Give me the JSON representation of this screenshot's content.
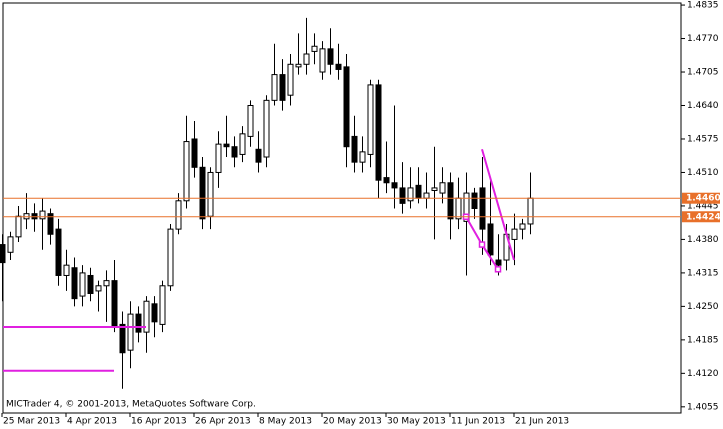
{
  "chart_data": {
    "type": "candlestick",
    "categories": [
      "25 Mar 2013",
      null,
      null,
      null,
      null,
      null,
      null,
      null,
      "4 Apr 2013",
      null,
      null,
      null,
      null,
      null,
      null,
      null,
      "16 Apr 2013",
      null,
      null,
      null,
      null,
      null,
      null,
      null,
      "26 Apr 2013",
      null,
      null,
      null,
      null,
      null,
      null,
      null,
      "8 May 2013",
      null,
      null,
      null,
      null,
      null,
      null,
      null,
      "20 May 2013",
      null,
      null,
      null,
      null,
      null,
      null,
      null,
      "30 May 2013",
      null,
      null,
      null,
      null,
      null,
      null,
      null,
      "11 Jun 2013",
      null,
      null,
      null,
      null,
      null,
      null,
      null,
      "21 Jun 2013",
      null,
      null
    ],
    "open": [
      1.437,
      1.4355,
      1.4385,
      1.442,
      1.443,
      1.442,
      1.443,
      1.44,
      1.431,
      1.4325,
      1.427,
      1.431,
      1.428,
      1.429,
      1.43,
      1.4215,
      1.4165,
      1.4235,
      1.42,
      1.4255,
      1.4215,
      1.429,
      1.44,
      1.4455,
      1.4575,
      1.452,
      1.4425,
      1.451,
      1.4565,
      1.456,
      1.4545,
      1.458,
      1.4555,
      1.454,
      1.465,
      1.47,
      1.466,
      1.4715,
      1.472,
      1.4745,
      1.4705,
      1.475,
      1.472,
      1.4715,
      1.458,
      1.453,
      1.4545,
      1.468,
      1.45,
      1.449,
      1.448,
      1.4455,
      1.4485,
      1.446,
      1.4475,
      1.447,
      1.449,
      1.442,
      1.4415,
      1.447,
      1.448,
      1.441,
      1.434,
      1.434,
      1.438,
      1.44,
      1.441
    ],
    "high": [
      1.439,
      1.4395,
      1.4445,
      1.447,
      1.445,
      1.446,
      1.444,
      1.442,
      1.436,
      1.4345,
      1.433,
      1.4325,
      1.43,
      1.432,
      1.434,
      1.424,
      1.426,
      1.425,
      1.427,
      1.427,
      1.43,
      1.441,
      1.447,
      1.462,
      1.461,
      1.454,
      1.452,
      1.459,
      1.462,
      1.458,
      1.46,
      1.465,
      1.459,
      1.466,
      1.476,
      1.473,
      1.474,
      1.478,
      1.481,
      1.478,
      1.4765,
      1.479,
      1.476,
      1.474,
      1.462,
      1.458,
      1.469,
      1.469,
      1.457,
      1.464,
      1.453,
      1.452,
      1.452,
      1.451,
      1.456,
      1.452,
      1.451,
      1.45,
      1.451,
      1.448,
      1.454,
      1.45,
      1.439,
      1.441,
      1.443,
      1.442,
      1.451
    ],
    "low": [
      1.426,
      1.434,
      1.4375,
      1.44,
      1.4395,
      1.436,
      1.437,
      1.429,
      1.428,
      1.425,
      1.425,
      1.426,
      1.424,
      1.422,
      1.42,
      1.409,
      1.413,
      1.418,
      1.416,
      1.419,
      1.42,
      1.428,
      1.439,
      1.444,
      1.45,
      1.44,
      1.44,
      1.448,
      1.454,
      1.452,
      1.453,
      1.456,
      1.451,
      1.452,
      1.464,
      1.463,
      1.464,
      1.47,
      1.47,
      1.472,
      1.469,
      1.47,
      1.469,
      1.452,
      1.451,
      1.451,
      1.452,
      1.446,
      1.447,
      1.444,
      1.443,
      1.444,
      1.445,
      1.444,
      1.438,
      1.445,
      1.438,
      1.44,
      1.431,
      1.442,
      1.435,
      1.433,
      1.431,
      1.432,
      1.433,
      1.438,
      1.439
    ],
    "close": [
      1.4335,
      1.4385,
      1.4425,
      1.443,
      1.442,
      1.4435,
      1.439,
      1.431,
      1.433,
      1.4265,
      1.4315,
      1.4275,
      1.429,
      1.43,
      1.421,
      1.416,
      1.4235,
      1.42,
      1.426,
      1.422,
      1.429,
      1.44,
      1.4455,
      1.457,
      1.452,
      1.442,
      1.451,
      1.4565,
      1.456,
      1.454,
      1.4585,
      1.464,
      1.453,
      1.465,
      1.47,
      1.465,
      1.472,
      1.472,
      1.474,
      1.4755,
      1.475,
      1.472,
      1.471,
      1.456,
      1.453,
      1.455,
      1.468,
      1.4495,
      1.449,
      1.448,
      1.445,
      1.448,
      1.446,
      1.447,
      1.448,
      1.449,
      1.442,
      1.446,
      1.447,
      1.444,
      1.44,
      1.435,
      1.433,
      1.439,
      1.44,
      1.441,
      1.446
    ],
    "ylim": [
      1.4043,
      1.4839
    ],
    "yticks": [
      1.4835,
      {
        "value": 1.477,
        "label": "1.4770"
      },
      1.4705,
      {
        "value": 1.464,
        "label": "1.4640"
      },
      1.4575,
      {
        "value": 1.451,
        "label": "1.4510"
      },
      1.4445,
      {
        "value": 1.438,
        "label": "1.4380"
      },
      1.4315,
      {
        "value": 1.425,
        "label": "1.4250"
      },
      1.4185,
      {
        "value": 1.412,
        "label": "1.4120"
      },
      1.4055
    ],
    "levels": [
      {
        "value": 1.446,
        "label": "1.4460"
      },
      {
        "value": 1.4424,
        "label": "1.4424"
      }
    ],
    "level_color": "#e8702a",
    "drawings_color": "#e020e0",
    "hlines": [
      {
        "value": 1.421,
        "to": 18
      },
      {
        "value": 1.4125,
        "to": 14
      }
    ],
    "zigzag": {
      "x": [
        58,
        60,
        62
      ],
      "values": [
        1.4424,
        1.437,
        1.4322
      ]
    },
    "trendline": {
      "x": [
        60,
        64
      ],
      "values": [
        1.4555,
        1.434
      ]
    },
    "footer": "MICTrader 4, © 2001-2013, MetaQuotes Software Corp."
  }
}
